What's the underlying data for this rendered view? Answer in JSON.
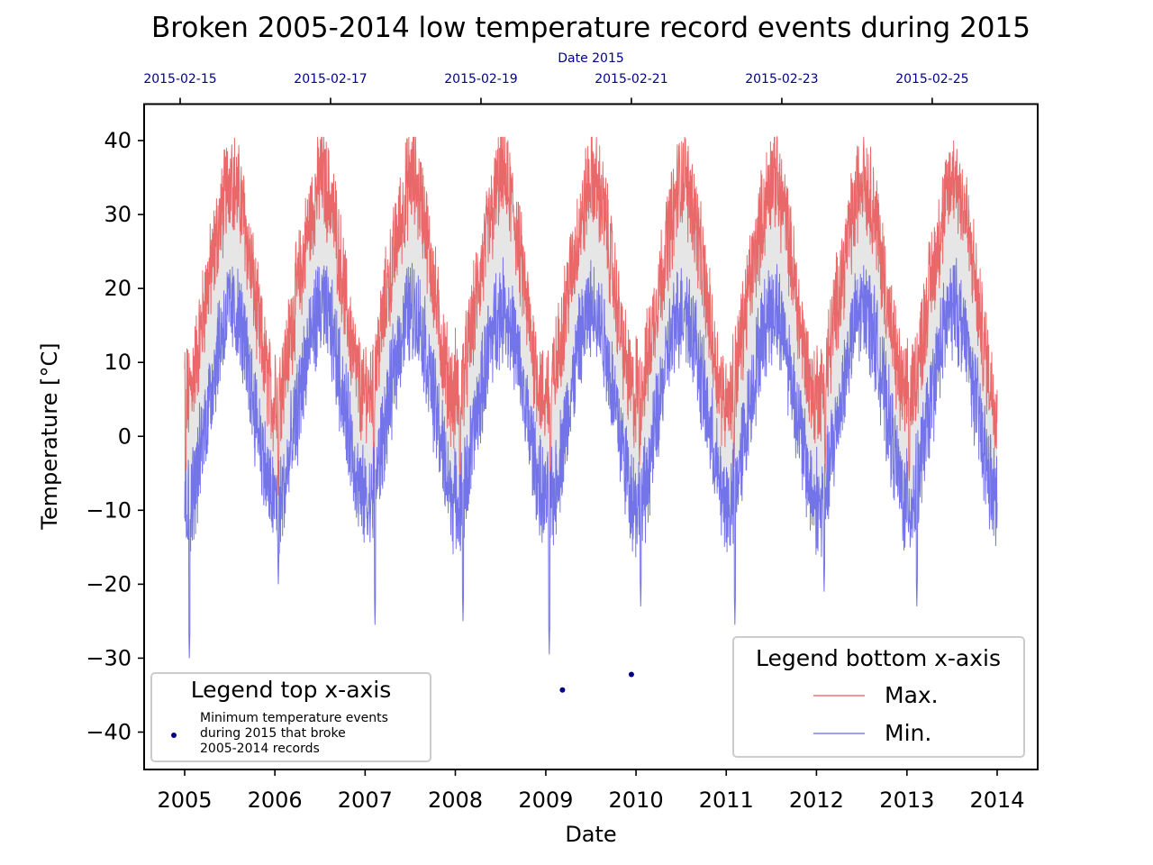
{
  "chart_data": {
    "type": "line",
    "title": "Broken 2005-2014 low temperature record events during 2015",
    "xlabel": "Date",
    "ylabel": "Temperature [°C]",
    "x_range": [
      "2005-01-01",
      "2014-01-01"
    ],
    "ylim": [
      -45,
      45
    ],
    "x_ticks": [
      "2005",
      "2006",
      "2007",
      "2008",
      "2009",
      "2010",
      "2011",
      "2012",
      "2013",
      "2014"
    ],
    "y_ticks": [
      40,
      30,
      20,
      10,
      0,
      -10,
      -20,
      -30,
      -40
    ],
    "y_tick_labels": [
      "40",
      "30",
      "20",
      "10",
      "0",
      "−10",
      "−20",
      "−30",
      "−40"
    ],
    "grid": false,
    "fill_between": {
      "color": "#e6e6e6"
    },
    "series": [
      {
        "name": "Max.",
        "color": "#e8595a",
        "seasonal_profile": {
          "x": [
            "01-01",
            "01-15",
            "02-01",
            "02-15",
            "03-01",
            "03-15",
            "04-01",
            "04-15",
            "05-01",
            "05-15",
            "06-01",
            "06-15",
            "07-01",
            "07-15",
            "08-01",
            "08-15",
            "09-01",
            "09-15",
            "10-01",
            "10-15",
            "11-01",
            "11-15",
            "12-01",
            "12-15",
            "12-31"
          ],
          "y": [
            8,
            5,
            8,
            10,
            13,
            16,
            20,
            22,
            25,
            28,
            30,
            33,
            35,
            35,
            33,
            32,
            29,
            25,
            22,
            18,
            14,
            11,
            8,
            6,
            4
          ]
        },
        "annual_peaks": [
          {
            "year": 2005,
            "date": "07-10",
            "value": 38.5
          },
          {
            "year": 2006,
            "date": "07-05",
            "value": 35
          },
          {
            "year": 2007,
            "date": "07-25",
            "value": 36
          },
          {
            "year": 2008,
            "date": "07-20",
            "value": 35.5
          },
          {
            "year": 2009,
            "date": "07-20",
            "value": 33
          },
          {
            "year": 2010,
            "date": "07-20",
            "value": 36.5
          },
          {
            "year": 2011,
            "date": "07-25",
            "value": 40.5
          },
          {
            "year": 2012,
            "date": "07-10",
            "value": 40.5
          },
          {
            "year": 2013,
            "date": "07-15",
            "value": 36.5
          }
        ],
        "annual_lows": [
          {
            "year": 2005,
            "date": "01-05",
            "value": -8
          },
          {
            "year": 2006,
            "date": "01-15",
            "value": -8
          },
          {
            "year": 2007,
            "date": "02-05",
            "value": -10
          },
          {
            "year": 2008,
            "date": "01-20",
            "value": -7
          },
          {
            "year": 2009,
            "date": "01-20",
            "value": -10
          },
          {
            "year": 2010,
            "date": "01-15",
            "value": -4
          },
          {
            "year": 2011,
            "date": "02-01",
            "value": -6
          },
          {
            "year": 2012,
            "date": "02-05",
            "value": -5
          },
          {
            "year": 2013,
            "date": "01-10",
            "value": -7
          }
        ]
      },
      {
        "name": "Min.",
        "color": "#6666e8",
        "seasonal_profile": {
          "x": [
            "01-01",
            "01-15",
            "02-01",
            "02-15",
            "03-01",
            "03-15",
            "04-01",
            "04-15",
            "05-01",
            "05-15",
            "06-01",
            "06-15",
            "07-01",
            "07-15",
            "08-01",
            "08-15",
            "09-01",
            "09-15",
            "10-01",
            "10-15",
            "11-01",
            "11-15",
            "12-01",
            "12-15",
            "12-31"
          ],
          "y": [
            -8,
            -10,
            -8,
            -6,
            -3,
            0,
            3,
            6,
            9,
            12,
            14,
            16,
            17,
            17,
            16,
            15,
            12,
            9,
            6,
            3,
            0,
            -3,
            -6,
            -8,
            -9
          ]
        },
        "annual_peaks": [
          {
            "year": 2005,
            "date": "06-25",
            "value": 20
          },
          {
            "year": 2006,
            "date": "07-15",
            "value": 21.5
          },
          {
            "year": 2007,
            "date": "07-20",
            "value": 20
          },
          {
            "year": 2008,
            "date": "07-20",
            "value": 19.5
          },
          {
            "year": 2009,
            "date": "07-20",
            "value": 18.5
          },
          {
            "year": 2010,
            "date": "07-20",
            "value": 19.5
          },
          {
            "year": 2011,
            "date": "07-20",
            "value": 20
          },
          {
            "year": 2012,
            "date": "07-25",
            "value": 21
          },
          {
            "year": 2013,
            "date": "07-20",
            "value": 21.5
          }
        ],
        "annual_lows": [
          {
            "year": 2005,
            "date": "01-20",
            "value": -30
          },
          {
            "year": 2006,
            "date": "01-15",
            "value": -20
          },
          {
            "year": 2007,
            "date": "02-10",
            "value": -25.5
          },
          {
            "year": 2008,
            "date": "02-01",
            "value": -25
          },
          {
            "year": 2009,
            "date": "01-15",
            "value": -29.5
          },
          {
            "year": 2010,
            "date": "01-20",
            "value": -23
          },
          {
            "year": 2011,
            "date": "02-05",
            "value": -25.5
          },
          {
            "year": 2012,
            "date": "02-01",
            "value": -21
          },
          {
            "year": 2013,
            "date": "02-10",
            "value": -23
          }
        ]
      }
    ],
    "top_axis": {
      "label": "Date 2015",
      "range": [
        "2015-02-14T12:30",
        "2015-02-26T09:40"
      ],
      "ticks": [
        "2015-02-15",
        "2015-02-17",
        "2015-02-19",
        "2015-02-21",
        "2015-02-23",
        "2015-02-25"
      ],
      "color": "#00008b",
      "scatter": {
        "name": "Minimum temperature events during 2015 that broke 2005-2014 records",
        "label_lines": [
          "Minimum temperature events",
          "during 2015 that broke",
          "2005-2014 records"
        ],
        "color": "#00008b",
        "points": [
          {
            "x": "2015-02-20T02:00",
            "y": -34.3
          },
          {
            "x": "2015-02-21T00:00",
            "y": -32.2
          }
        ]
      }
    },
    "legend_bottom": {
      "title": "Legend bottom x-axis",
      "placement": "lower right"
    },
    "legend_top": {
      "title": "Legend top x-axis",
      "placement": "lower left"
    }
  }
}
